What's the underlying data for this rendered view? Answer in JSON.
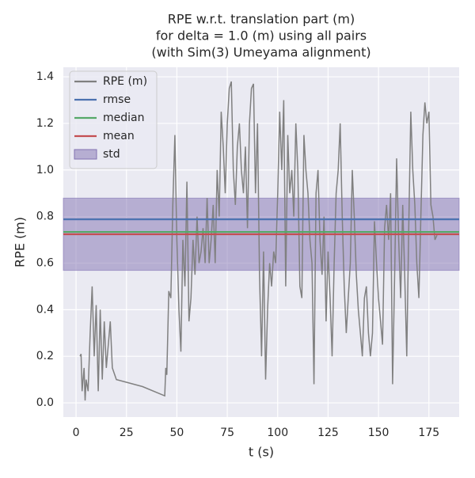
{
  "chart_data": {
    "type": "line",
    "title": [
      "RPE w.r.t. translation part (m)",
      "for delta = 1.0 (m) using all pairs",
      "(with Sim(3) Umeyama alignment)"
    ],
    "xlabel": "t (s)",
    "ylabel": "RPE (m)",
    "xlim": [
      -6.3,
      190
    ],
    "ylim": [
      -0.061,
      1.441
    ],
    "xticks": [
      0,
      25,
      50,
      75,
      100,
      125,
      150,
      175
    ],
    "yticks": [
      {
        "value": 0,
        "label": "0.0"
      },
      0.2,
      0.4,
      0.6,
      0.8,
      {
        "value": 1,
        "label": "1.0"
      },
      1.2,
      1.4
    ],
    "grid": true,
    "legend": "upper left",
    "series": [
      {
        "name": "RPE (m)",
        "color": "#808080",
        "x": [
          2,
          2.5,
          3,
          4,
          4.5,
          5,
          6,
          7,
          8,
          9,
          10,
          11,
          12,
          13,
          14,
          15,
          16,
          17,
          18,
          20,
          33,
          44,
          44.5,
          45,
          46,
          47,
          48,
          49,
          50,
          51,
          52,
          53,
          54,
          55,
          56,
          57,
          58,
          59,
          60,
          61,
          62,
          63,
          64,
          65,
          66,
          67,
          68,
          69,
          70,
          71,
          72,
          73,
          74,
          75,
          76,
          77,
          78,
          79,
          80,
          81,
          82,
          83,
          84,
          85,
          86,
          87,
          88,
          89,
          90,
          91,
          92,
          93,
          94,
          95,
          96,
          97,
          98,
          99,
          100,
          101,
          102,
          103,
          104,
          105,
          106,
          107,
          108,
          109,
          110,
          111,
          112,
          113,
          114,
          115,
          116,
          117,
          118,
          119,
          120,
          121,
          122,
          123,
          124,
          125,
          126,
          127,
          128,
          129,
          130,
          131,
          132,
          133,
          134,
          135,
          136,
          137,
          138,
          139,
          140,
          141,
          142,
          143,
          144,
          145,
          146,
          147,
          148,
          149,
          150,
          151,
          152,
          153,
          154,
          155,
          156,
          157,
          158,
          159,
          160,
          161,
          162,
          163,
          164,
          165,
          166,
          167,
          168,
          169,
          170,
          171,
          172,
          173,
          174,
          175,
          176,
          177,
          178,
          179
        ],
        "values": [
          0.2,
          0.21,
          0.05,
          0.15,
          0.01,
          0.1,
          0.05,
          0.3,
          0.5,
          0.2,
          0.42,
          0.05,
          0.4,
          0.1,
          0.35,
          0.15,
          0.25,
          0.35,
          0.15,
          0.1,
          0.07,
          0.03,
          0.15,
          0.12,
          0.48,
          0.45,
          0.85,
          1.15,
          0.7,
          0.4,
          0.22,
          0.7,
          0.5,
          0.95,
          0.35,
          0.45,
          0.7,
          0.55,
          0.8,
          0.6,
          0.65,
          0.75,
          0.6,
          0.88,
          0.6,
          0.7,
          0.85,
          0.6,
          1.0,
          0.8,
          1.25,
          1.1,
          0.9,
          1.2,
          1.35,
          1.38,
          1.0,
          0.85,
          1.1,
          1.2,
          1.0,
          0.9,
          1.1,
          0.75,
          1.2,
          1.35,
          1.37,
          0.9,
          1.2,
          0.55,
          0.2,
          0.65,
          0.1,
          0.4,
          0.6,
          0.5,
          0.65,
          0.6,
          0.9,
          1.25,
          1.0,
          1.3,
          0.5,
          1.15,
          0.9,
          1.0,
          0.8,
          1.2,
          1.0,
          0.5,
          0.45,
          1.15,
          1.0,
          0.9,
          0.7,
          0.6,
          0.08,
          0.9,
          1.0,
          0.7,
          0.55,
          0.8,
          0.35,
          0.65,
          0.45,
          0.2,
          0.6,
          0.9,
          1.0,
          1.2,
          0.8,
          0.5,
          0.3,
          0.45,
          0.6,
          1.0,
          0.8,
          0.55,
          0.4,
          0.3,
          0.2,
          0.45,
          0.5,
          0.3,
          0.2,
          0.3,
          0.78,
          0.6,
          0.45,
          0.35,
          0.25,
          0.75,
          0.85,
          0.7,
          0.9,
          0.08,
          0.55,
          1.05,
          0.7,
          0.45,
          0.85,
          0.55,
          0.2,
          0.75,
          1.25,
          1.0,
          0.85,
          0.6,
          0.45,
          0.8,
          1.15,
          1.29,
          1.2,
          1.25,
          0.85,
          0.8,
          0.7,
          0.72
        ]
      }
    ],
    "hlines": [
      {
        "name": "rmse",
        "color": "#4c72b0",
        "value": 0.788
      },
      {
        "name": "median",
        "color": "#55a868",
        "value": 0.734
      },
      {
        "name": "mean",
        "color": "#c44e52",
        "value": 0.724
      }
    ],
    "std": {
      "name": "std",
      "color": "#8172b2",
      "value": 0.155
    }
  }
}
